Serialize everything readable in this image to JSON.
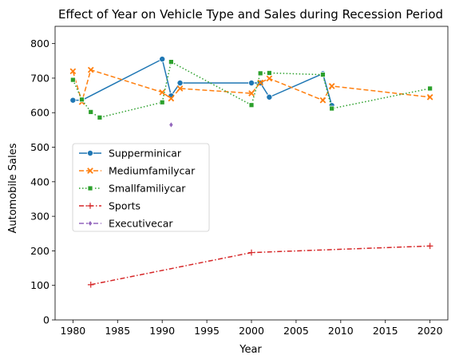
{
  "chart_data": {
    "type": "line",
    "title": "Effect of Year on Vehicle Type and Sales during Recession Period",
    "xlabel": "Year",
    "ylabel": "Automobile Sales",
    "xlim": [
      1978,
      2022
    ],
    "ylim": [
      0,
      850
    ],
    "xticks": [
      1980,
      1985,
      1990,
      1995,
      2000,
      2005,
      2010,
      2015,
      2020
    ],
    "yticks": [
      0,
      100,
      200,
      300,
      400,
      500,
      600,
      700,
      800
    ],
    "grid": false,
    "legend_position": "center-left",
    "series": [
      {
        "name": "Supperminicar",
        "color": "#1f77b4",
        "marker": "circle",
        "line_style": "solid",
        "points": [
          [
            1980,
            636
          ],
          [
            1981,
            636
          ],
          [
            1990,
            755
          ],
          [
            1991,
            649
          ],
          [
            1992,
            686
          ],
          [
            2000,
            686
          ],
          [
            2001,
            686
          ],
          [
            2002,
            645
          ],
          [
            2008,
            713
          ],
          [
            2009,
            621
          ]
        ]
      },
      {
        "name": "Mediumfamilycar",
        "color": "#ff7f0e",
        "marker": "x",
        "line_style": "dashed",
        "points": [
          [
            1980,
            720
          ],
          [
            1981,
            631
          ],
          [
            1982,
            724
          ],
          [
            1990,
            659
          ],
          [
            1991,
            641
          ],
          [
            1992,
            670
          ],
          [
            2000,
            656
          ],
          [
            2001,
            687
          ],
          [
            2002,
            699
          ],
          [
            2008,
            636
          ],
          [
            2009,
            677
          ],
          [
            2020,
            645
          ]
        ]
      },
      {
        "name": "Smallfamiliycar",
        "color": "#2ca02c",
        "marker": "square",
        "line_style": "dotted",
        "points": [
          [
            1980,
            695
          ],
          [
            1981,
            638
          ],
          [
            1982,
            602
          ],
          [
            1983,
            586
          ],
          [
            1990,
            630
          ],
          [
            1991,
            747
          ],
          [
            2000,
            622
          ],
          [
            2001,
            714
          ],
          [
            2002,
            715
          ],
          [
            2008,
            710
          ],
          [
            2009,
            612
          ],
          [
            2020,
            670
          ]
        ]
      },
      {
        "name": "Sports",
        "color": "#d62728",
        "marker": "plus",
        "line_style": "dashdot",
        "points": [
          [
            1982,
            102
          ],
          [
            2000,
            195
          ],
          [
            2020,
            214
          ]
        ]
      },
      {
        "name": "Executivecar",
        "color": "#9467bd",
        "marker": "diamond",
        "line_style": "dashed",
        "points": [
          [
            1991,
            565
          ]
        ]
      }
    ]
  }
}
